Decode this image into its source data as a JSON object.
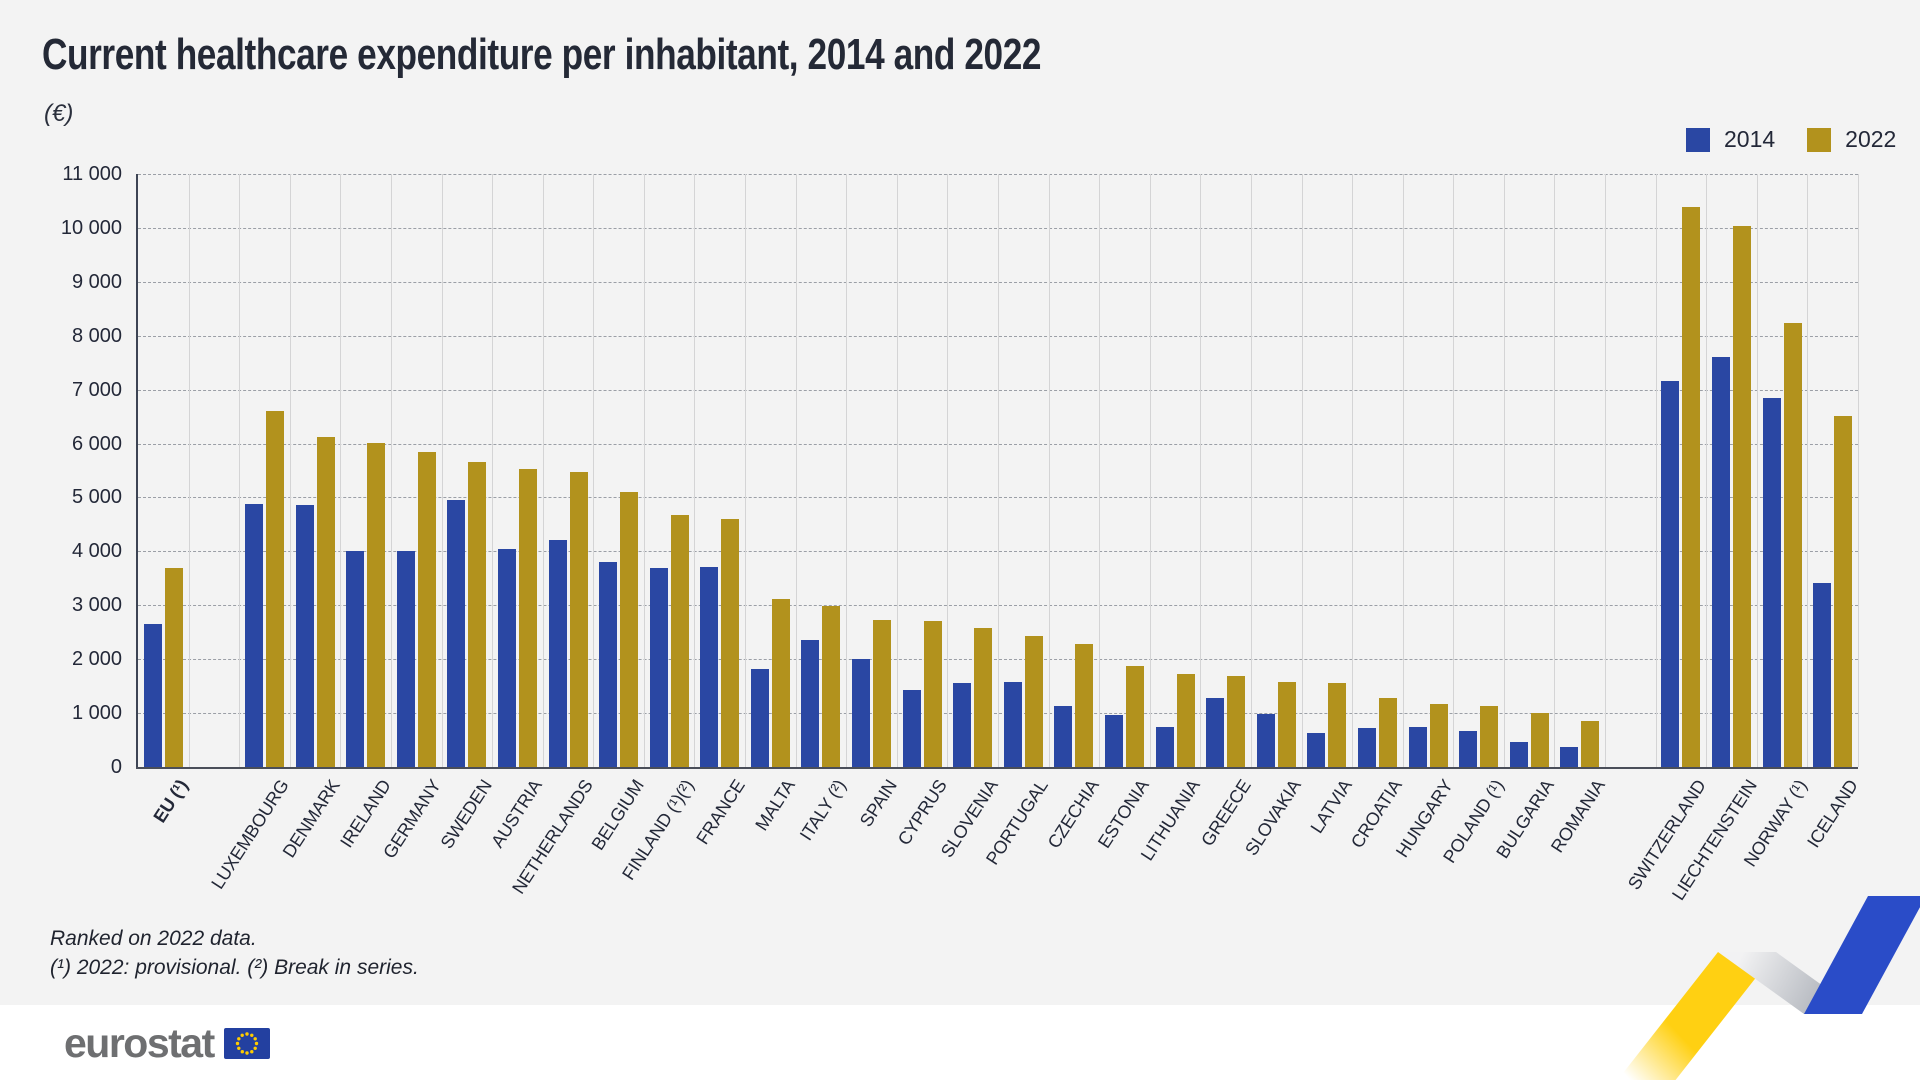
{
  "title": "Current healthcare expenditure per inhabitant, 2014 and 2022",
  "unit_label": "(€)",
  "legend": {
    "items": [
      {
        "label": "2014",
        "color": "#2a47a3"
      },
      {
        "label": "2022",
        "color": "#b2921d"
      }
    ]
  },
  "footnotes": {
    "line1": "Ranked on 2022 data.",
    "line2": "(¹) 2022: provisional. (²) Break in series."
  },
  "footer": {
    "logo_text": "eurostat"
  },
  "decor": {
    "ribbon_yellow": "#ffd012",
    "ribbon_blue": "#2a4cc8",
    "ribbon_silver_light": "#f2f2f3",
    "ribbon_silver_dark": "#9fa4ad",
    "flag_blue": "#2340a0",
    "star_yellow": "#ffcc00"
  },
  "chart_data": {
    "type": "bar",
    "title": "Current healthcare expenditure per inhabitant, 2014 and 2022",
    "xlabel": "",
    "ylabel": "(€)",
    "ylim": [
      0,
      11000
    ],
    "ytick_step": 1000,
    "ytick_labels": [
      "11 000",
      "10 000",
      "9 000",
      "8 000",
      "7 000",
      "6 000",
      "5 000",
      "4 000",
      "3 000",
      "2 000",
      "1 000",
      "0"
    ],
    "grid": "horizontal-dashed, vertical-solid column separators",
    "legend_position": "top-right",
    "bold_categories": [
      "EU (¹)"
    ],
    "categories": [
      "EU (¹)",
      "",
      "LUXEMBOURG",
      "DENMARK",
      "IRELAND",
      "GERMANY",
      "SWEDEN",
      "AUSTRIA",
      "NETHERLANDS",
      "BELGIUM",
      "FINLAND (¹)(²)",
      "FRANCE",
      "MALTA",
      "ITALY (²)",
      "SPAIN",
      "CYPRUS",
      "SLOVENIA",
      "PORTUGAL",
      "CZECHIA",
      "ESTONIA",
      "LITHUANIA",
      "GREECE",
      "SLOVAKIA",
      "LATVIA",
      "CROATIA",
      "HUNGARY",
      "POLAND (¹)",
      "BULGARIA",
      "ROMANIA",
      "",
      "SWITZERLAND",
      "LIECHTENSTEIN",
      "NORWAY (¹)",
      "ICELAND"
    ],
    "series": [
      {
        "name": "2014",
        "color": "#2a47a3",
        "values": [
          2660,
          null,
          4880,
          4860,
          4000,
          4000,
          4950,
          4040,
          4210,
          3810,
          3700,
          3720,
          1820,
          2350,
          2000,
          1420,
          1550,
          1570,
          1140,
          970,
          750,
          1280,
          980,
          640,
          720,
          750,
          670,
          460,
          370,
          null,
          7170,
          7610,
          6850,
          3420
        ]
      },
      {
        "name": "2022",
        "color": "#b2921d",
        "values": [
          3690,
          null,
          6600,
          6120,
          6020,
          5840,
          5650,
          5530,
          5480,
          5100,
          4670,
          4600,
          3120,
          2980,
          2720,
          2700,
          2580,
          2430,
          2280,
          1880,
          1720,
          1680,
          1570,
          1560,
          1280,
          1170,
          1140,
          1000,
          850,
          null,
          10380,
          10030,
          8230,
          6510
        ]
      }
    ]
  }
}
